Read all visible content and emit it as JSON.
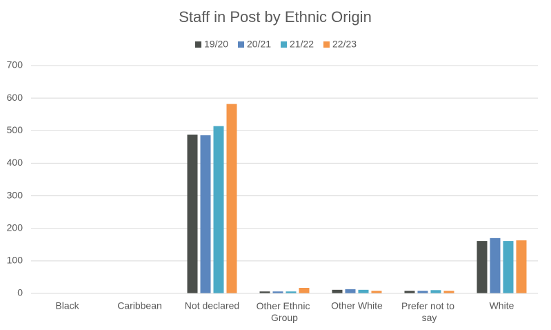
{
  "chart_data": {
    "type": "bar",
    "title": "Staff in Post by Ethnic Origin",
    "categories": [
      "Black",
      "Caribbean",
      "Not declared",
      "Other Ethnic Group",
      "Other White",
      "Prefer not to say",
      "White"
    ],
    "series": [
      {
        "name": "19/20",
        "color": "#4b4f4b",
        "values": [
          0,
          0,
          488,
          6,
          11,
          8,
          161
        ]
      },
      {
        "name": "20/21",
        "color": "#5b86be",
        "values": [
          0,
          0,
          486,
          6,
          13,
          8,
          170
        ]
      },
      {
        "name": "21/22",
        "color": "#4baac6",
        "values": [
          0,
          0,
          514,
          6,
          11,
          10,
          161
        ]
      },
      {
        "name": "22/23",
        "color": "#f59649",
        "values": [
          0,
          0,
          582,
          17,
          8,
          8,
          163
        ]
      }
    ],
    "ylim": [
      0,
      700
    ],
    "yticks": [
      0,
      100,
      200,
      300,
      400,
      500,
      600,
      700
    ],
    "grid": true,
    "legend": "top"
  }
}
